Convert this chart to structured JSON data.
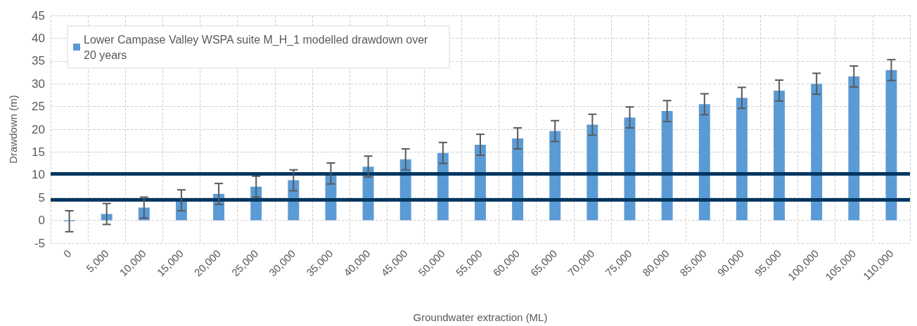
{
  "chart_data": {
    "type": "bar",
    "xlabel": "Groundwater extraction (ML)",
    "ylabel": "Drawdown (m)",
    "categories": [
      "0",
      "5,000",
      "10,000",
      "15,000",
      "20,000",
      "25,000",
      "30,000",
      "35,000",
      "40,000",
      "45,000",
      "50,000",
      "55,000",
      "60,000",
      "65,000",
      "70,000",
      "75,000",
      "80,000",
      "85,000",
      "90,000",
      "95,000",
      "100,000",
      "105,000",
      "110,000"
    ],
    "series": [
      {
        "name": "Lower Campase Valley WSPA suite M_H_1 modelled drawdown over 20 years",
        "color": "#5b9bd5",
        "values": [
          -0.2,
          1.4,
          2.8,
          4.4,
          5.8,
          7.4,
          8.8,
          10.3,
          11.8,
          13.4,
          14.8,
          16.6,
          18.0,
          19.6,
          21.0,
          22.6,
          24.0,
          25.5,
          26.9,
          28.5,
          30.0,
          31.6,
          33.0
        ],
        "errors": [
          2.3,
          2.3,
          2.3,
          2.3,
          2.3,
          2.3,
          2.3,
          2.3,
          2.3,
          2.3,
          2.3,
          2.3,
          2.3,
          2.3,
          2.3,
          2.3,
          2.3,
          2.3,
          2.3,
          2.3,
          2.3,
          2.3,
          2.3
        ]
      }
    ],
    "ylim": [
      -5,
      45
    ],
    "yticks": [
      -5,
      0,
      5,
      10,
      15,
      20,
      25,
      30,
      35,
      40,
      45
    ],
    "grid": true,
    "legend": "top left",
    "ref_lines": [
      {
        "axis": "y",
        "value": 10.3,
        "label": null,
        "color": "#003660"
      },
      {
        "axis": "y",
        "value": 4.6,
        "label": null,
        "color": "#003660"
      }
    ]
  }
}
